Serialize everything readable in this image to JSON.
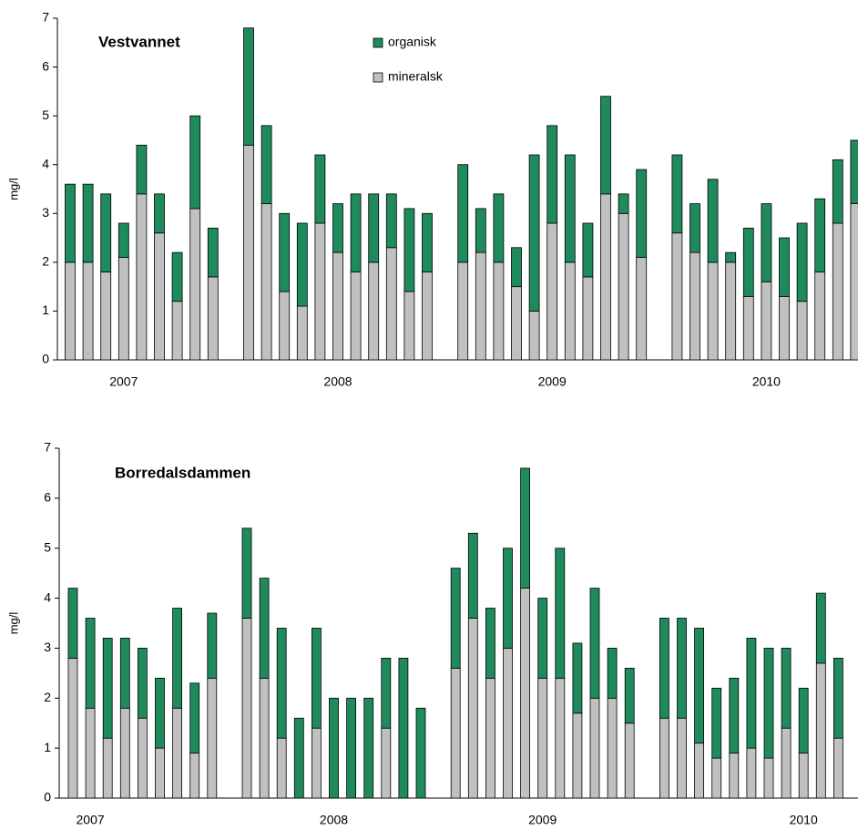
{
  "chart_data": [
    {
      "type": "stacked_bar",
      "title": "Vestvannet",
      "y_label": "mg/l",
      "legend": true,
      "categories": [
        null,
        null,
        null,
        "2007",
        null,
        null,
        null,
        null,
        null,
        null,
        null,
        null,
        null,
        null,
        null,
        "2008",
        null,
        null,
        null,
        null,
        null,
        null,
        null,
        null,
        null,
        null,
        null,
        "2009",
        null,
        null,
        null,
        null,
        null,
        null,
        null,
        null,
        null,
        null,
        null,
        "2010",
        null,
        null,
        null,
        null,
        null
      ],
      "series": [
        {
          "name": "mineralsk",
          "color": "#c0c0c0",
          "values": [
            2.0,
            2.0,
            1.8,
            2.1,
            3.4,
            2.6,
            1.2,
            3.1,
            1.7,
            null,
            4.4,
            3.2,
            1.4,
            1.1,
            2.8,
            2.2,
            1.8,
            2.0,
            2.3,
            1.4,
            1.8,
            null,
            2.0,
            2.2,
            2.0,
            1.5,
            1.0,
            2.8,
            2.0,
            1.7,
            3.4,
            3.0,
            2.1,
            null,
            2.6,
            2.2,
            2.0,
            2.0,
            1.3,
            1.6,
            1.3,
            1.2,
            1.8,
            2.8,
            3.2
          ]
        },
        {
          "name": "organisk",
          "color": "#1f8a5b",
          "values": [
            1.6,
            1.6,
            1.6,
            0.7,
            1.0,
            0.8,
            1.0,
            1.9,
            1.0,
            null,
            2.4,
            1.6,
            1.6,
            1.7,
            1.4,
            1.0,
            1.6,
            1.4,
            1.1,
            1.7,
            1.2,
            null,
            2.0,
            0.9,
            1.4,
            0.8,
            3.2,
            2.0,
            2.2,
            1.1,
            2.0,
            0.4,
            1.8,
            null,
            1.6,
            1.0,
            1.7,
            0.2,
            1.4,
            1.6,
            1.2,
            1.6,
            1.5,
            1.3,
            1.3
          ]
        }
      ],
      "ylim": [
        0,
        7
      ],
      "yticks": [
        0,
        1,
        2,
        3,
        4,
        5,
        6,
        7
      ]
    },
    {
      "type": "stacked_bar",
      "title": "Borredalsdammen",
      "y_label": "mg/l",
      "legend": false,
      "categories": [
        null,
        "2007",
        null,
        null,
        null,
        null,
        null,
        null,
        null,
        null,
        null,
        null,
        null,
        null,
        null,
        "2008",
        null,
        null,
        null,
        null,
        null,
        null,
        null,
        null,
        null,
        null,
        null,
        "2009",
        null,
        null,
        null,
        null,
        null,
        null,
        null,
        null,
        null,
        null,
        null,
        null,
        null,
        null,
        "2010",
        null,
        null
      ],
      "series": [
        {
          "color": "#c0c0c0",
          "values": [
            2.8,
            1.8,
            1.2,
            1.8,
            1.6,
            1.0,
            1.8,
            0.9,
            2.4,
            null,
            3.6,
            2.4,
            1.2,
            0,
            1.4,
            0,
            0,
            0,
            1.4,
            0,
            0,
            null,
            2.6,
            3.6,
            2.4,
            3.0,
            4.2,
            2.4,
            2.4,
            1.7,
            2.0,
            2.0,
            1.5,
            null,
            1.6,
            1.6,
            1.1,
            0.8,
            0.9,
            1.0,
            0.8,
            1.4,
            0.9,
            2.7,
            1.2
          ]
        },
        {
          "color": "#1f8a5b",
          "values": [
            1.4,
            1.8,
            2.0,
            1.4,
            1.4,
            1.4,
            2.0,
            1.4,
            1.3,
            null,
            1.8,
            2.0,
            2.2,
            1.6,
            2.0,
            2.0,
            2.0,
            2.0,
            1.4,
            2.8,
            1.8,
            null,
            2.0,
            1.7,
            1.4,
            2.0,
            2.4,
            1.6,
            2.6,
            1.4,
            2.2,
            1.0,
            1.1,
            null,
            2.0,
            2.0,
            2.3,
            1.4,
            1.5,
            2.2,
            2.2,
            1.6,
            1.3,
            1.4,
            1.6
          ]
        }
      ],
      "ylim": [
        0,
        7
      ],
      "yticks": [
        0,
        1,
        2,
        3,
        4,
        5,
        6,
        7
      ]
    }
  ]
}
